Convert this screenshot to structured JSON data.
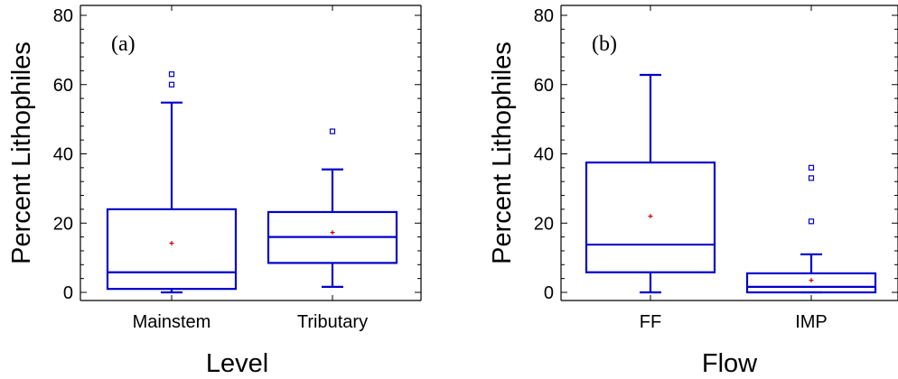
{
  "chart_data": [
    {
      "type": "box",
      "panel_label": "(a)",
      "xlabel": "Level",
      "ylabel": "Percent Lithophiles",
      "ylim": [
        0,
        80
      ],
      "yticks": [
        0,
        20,
        40,
        60,
        80
      ],
      "grid": false,
      "categories": [
        "Mainstem",
        "Tributary"
      ],
      "boxes": [
        {
          "category": "Mainstem",
          "min": 0,
          "q1": 1,
          "median": 5.8,
          "mean": 14.2,
          "q3": 24,
          "max": 54.8,
          "outliers": [
            60,
            63
          ]
        },
        {
          "category": "Tributary",
          "min": 1.6,
          "q1": 8.5,
          "median": 16,
          "mean": 17.3,
          "q3": 23.2,
          "max": 35.5,
          "outliers": [
            46.5
          ]
        }
      ],
      "colors": {
        "box": "#0000cc",
        "mean": "#cc0000"
      }
    },
    {
      "type": "box",
      "panel_label": "(b)",
      "xlabel": "Flow",
      "ylabel": "Percent Lithophiles",
      "ylim": [
        0,
        80
      ],
      "yticks": [
        0,
        20,
        40,
        60,
        80
      ],
      "grid": false,
      "categories": [
        "FF",
        "IMP"
      ],
      "boxes": [
        {
          "category": "FF",
          "min": 0,
          "q1": 5.8,
          "median": 13.8,
          "mean": 22,
          "q3": 37.5,
          "max": 62.8,
          "outliers": []
        },
        {
          "category": "IMP",
          "min": 0,
          "q1": 0,
          "median": 1.6,
          "mean": 3.5,
          "q3": 5.5,
          "max": 11,
          "outliers": [
            20.5,
            33,
            36
          ]
        }
      ],
      "colors": {
        "box": "#0000cc",
        "mean": "#cc0000"
      }
    }
  ]
}
